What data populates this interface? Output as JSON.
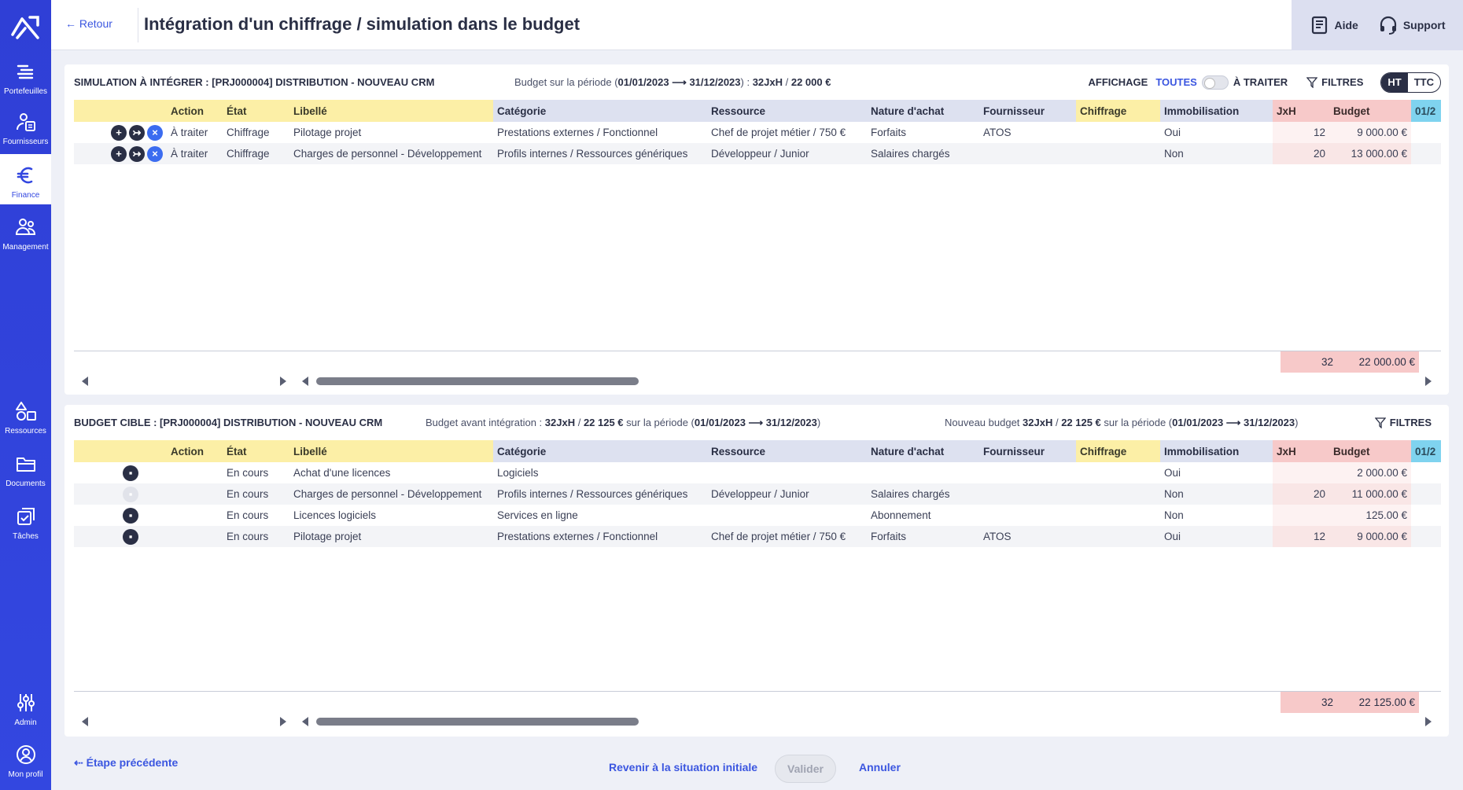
{
  "colors": {
    "sidebar": "#3347e0",
    "accent": "#3b56e0",
    "header_yellow": "#fcefa6",
    "header_blue": "#dde1f0",
    "header_pink": "#f7c9c9",
    "header_cyan": "#7fd3ef"
  },
  "sidebar": {
    "items": [
      {
        "label": "Portefeuilles",
        "icon": "portfolio-icon"
      },
      {
        "label": "Fournisseurs",
        "icon": "suppliers-icon"
      },
      {
        "label": "Finance",
        "icon": "euro-icon"
      },
      {
        "label": "Management",
        "icon": "people-icon"
      },
      {
        "label": "Ressources",
        "icon": "shapes-icon"
      },
      {
        "label": "Documents",
        "icon": "folder-icon"
      },
      {
        "label": "Tâches",
        "icon": "tasks-icon"
      },
      {
        "label": "Admin",
        "icon": "sliders-icon"
      },
      {
        "label": "Mon profil",
        "icon": "profile-icon"
      }
    ]
  },
  "header": {
    "back": "← Retour",
    "title": "Intégration d'un chiffrage / simulation dans le budget",
    "help": "Aide",
    "support": "Support"
  },
  "columns": [
    "Action",
    "État",
    "Libellé",
    "Catégorie",
    "Ressource",
    "Nature d'achat",
    "Fournisseur",
    "Chiffrage",
    "Immobilisation",
    "JxH",
    "Budget",
    "01/2"
  ],
  "simulation": {
    "title": "SIMULATION À INTÉGRER : [PRJ000004] DISTRIBUTION - NOUVEAU CRM",
    "info_prefix": "Budget sur la période (",
    "period": "01/01/2023 ⟶ 31/12/2023",
    "info_mid": ") : ",
    "jxh": "32JxH",
    "sep": " / ",
    "budget": "22 000 €",
    "display_label": "AFFICHAGE",
    "filter_all": "TOUTES",
    "filter_todo": "À TRAITER",
    "filters": "FILTRES",
    "ht": "HT",
    "ttc": "TTC",
    "rows": [
      {
        "action": "À traiter",
        "etat": "Chiffrage",
        "libelle": "Pilotage projet",
        "categorie": "Prestations externes / Fonctionnel",
        "ressource": "Chef de projet métier / 750 €",
        "nature": "Forfaits",
        "fournisseur": "ATOS",
        "chiffrage": "",
        "immo": "Oui",
        "jxh": "12",
        "budget": "9 000.00 €"
      },
      {
        "action": "À traiter",
        "etat": "Chiffrage",
        "libelle": "Charges de personnel - Développement",
        "categorie": "Profils internes / Ressources génériques",
        "ressource": "Développeur / Junior",
        "nature": "Salaires chargés",
        "fournisseur": "",
        "chiffrage": "",
        "immo": "Non",
        "jxh": "20",
        "budget": "13 000.00 €"
      }
    ],
    "total_jxh": "32",
    "total_budget": "22 000.00 €"
  },
  "target": {
    "title": "BUDGET CIBLE : [PRJ000004] DISTRIBUTION - NOUVEAU CRM",
    "before_prefix": "Budget avant intégration : ",
    "before_jxh": "32JxH",
    "before_budget": "22 125 €",
    "before_mid": " sur la période (",
    "period": "01/01/2023 ⟶ 31/12/2023",
    "close": ")",
    "new_prefix": "Nouveau budget ",
    "new_jxh": "32JxH",
    "new_budget": "22 125 €",
    "filters": "FILTRES",
    "rows": [
      {
        "etat": "En cours",
        "libelle": "Achat d'une licences",
        "categorie": "Logiciels",
        "ressource": "",
        "nature": "",
        "fournisseur": "",
        "chiffrage": "",
        "immo": "Oui",
        "jxh": "",
        "budget": "2 000.00 €"
      },
      {
        "etat": "En cours",
        "libelle": "Charges de personnel - Développement",
        "categorie": "Profils internes / Ressources génériques",
        "ressource": "Développeur / Junior",
        "nature": "Salaires chargés",
        "fournisseur": "",
        "chiffrage": "",
        "immo": "Non",
        "jxh": "20",
        "budget": "11 000.00 €"
      },
      {
        "etat": "En cours",
        "libelle": "Licences logiciels",
        "categorie": "Services en ligne",
        "ressource": "",
        "nature": "Abonnement",
        "fournisseur": "",
        "chiffrage": "",
        "immo": "Non",
        "jxh": "",
        "budget": "125.00 €"
      },
      {
        "etat": "En cours",
        "libelle": "Pilotage projet",
        "categorie": "Prestations externes / Fonctionnel",
        "ressource": "Chef de projet métier / 750 €",
        "nature": "Forfaits",
        "fournisseur": "ATOS",
        "chiffrage": "",
        "immo": "Oui",
        "jxh": "12",
        "budget": "9 000.00 €"
      }
    ],
    "total_jxh": "32",
    "total_budget": "22 125.00 €"
  },
  "footer": {
    "prev": "⇠ Étape précédente",
    "revert": "Revenir à la situation initiale",
    "validate": "Valider",
    "cancel": "Annuler"
  }
}
